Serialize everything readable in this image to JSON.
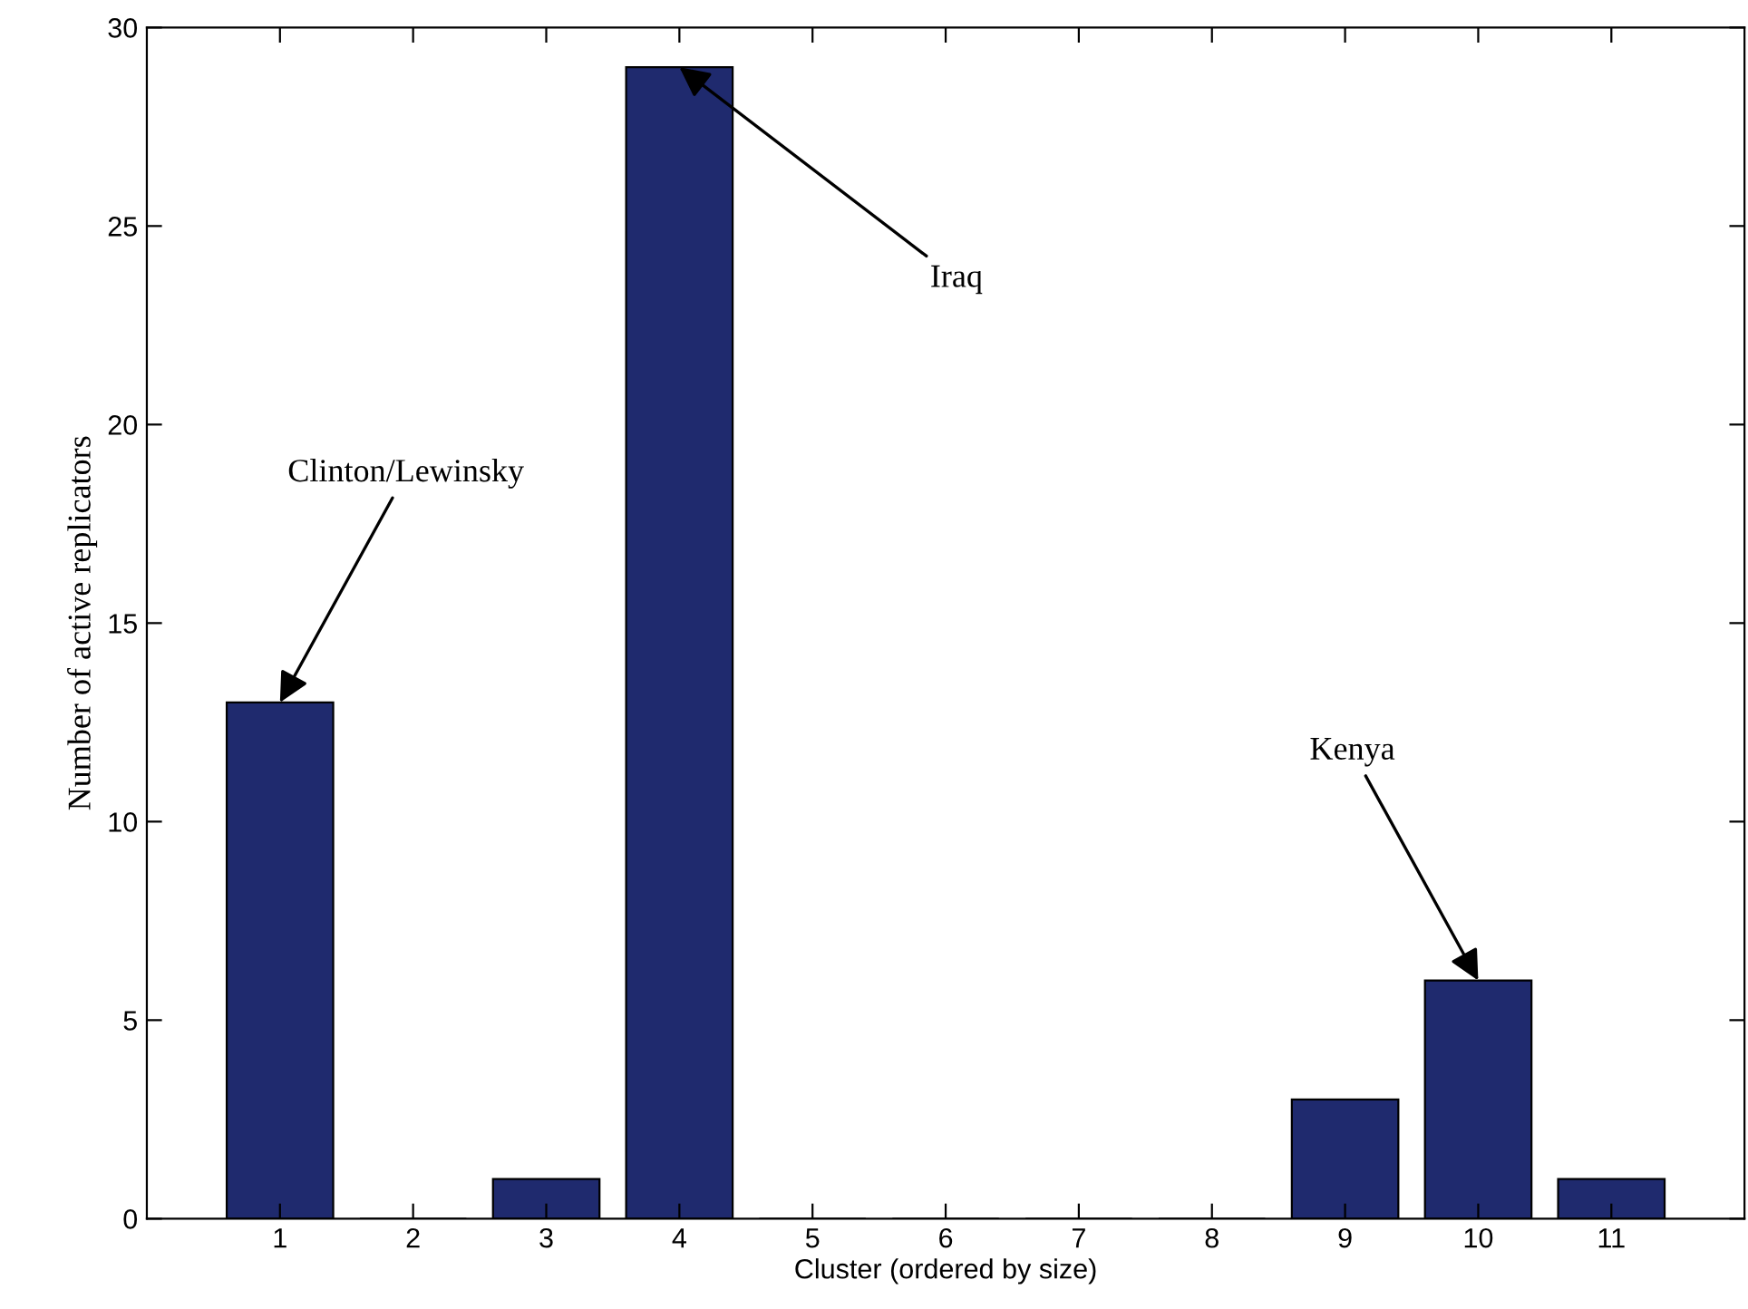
{
  "chart_data": {
    "type": "bar",
    "x": [
      1,
      2,
      3,
      4,
      5,
      6,
      7,
      8,
      9,
      10,
      11
    ],
    "values": [
      13,
      0,
      1,
      29,
      0,
      0,
      0,
      0,
      3,
      6,
      1
    ],
    "color": "#1f2a6e",
    "xlim": [
      0,
      12
    ],
    "xticks": [
      1,
      2,
      3,
      4,
      5,
      6,
      7,
      8,
      9,
      10,
      11
    ],
    "ylim": [
      0,
      30
    ],
    "yticks": [
      0,
      5,
      10,
      15,
      20,
      25,
      30
    ],
    "xlabel": "Cluster (ordered by size)",
    "ylabel": "Number of active replicators",
    "grid": false,
    "annotations": [
      {
        "text": "Clinton/Lewinsky",
        "x": 1,
        "y": 13
      },
      {
        "text": "Iraq",
        "x": 4,
        "y": 29
      },
      {
        "text": "Kenya",
        "x": 10,
        "y": 6
      }
    ]
  }
}
